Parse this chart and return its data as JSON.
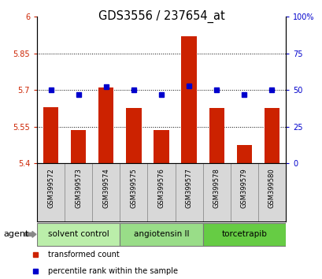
{
  "title": "GDS3556 / 237654_at",
  "samples": [
    "GSM399572",
    "GSM399573",
    "GSM399574",
    "GSM399575",
    "GSM399576",
    "GSM399577",
    "GSM399578",
    "GSM399579",
    "GSM399580"
  ],
  "bar_values": [
    5.63,
    5.535,
    5.71,
    5.625,
    5.535,
    5.92,
    5.625,
    5.475,
    5.625
  ],
  "percentile_values": [
    50,
    47,
    52,
    50,
    47,
    53,
    50,
    47,
    50
  ],
  "ylim_left": [
    5.4,
    6.0
  ],
  "ylim_right": [
    0,
    100
  ],
  "yticks_left": [
    5.4,
    5.55,
    5.7,
    5.85,
    6.0
  ],
  "yticks_right": [
    0,
    25,
    50,
    75,
    100
  ],
  "ytick_labels_left": [
    "5.4",
    "5.55",
    "5.7",
    "5.85",
    "6"
  ],
  "ytick_labels_right": [
    "0",
    "25",
    "50",
    "75",
    "100%"
  ],
  "hlines": [
    5.55,
    5.7,
    5.85
  ],
  "bar_color": "#cc2200",
  "dot_color": "#0000cc",
  "bar_base": 5.4,
  "groups": [
    {
      "label": "solvent control",
      "start": 0,
      "end": 3,
      "color": "#bbeeaa"
    },
    {
      "label": "angiotensin II",
      "start": 3,
      "end": 6,
      "color": "#99dd88"
    },
    {
      "label": "torcetrapib",
      "start": 6,
      "end": 9,
      "color": "#66cc44"
    }
  ],
  "agent_label": "agent",
  "legend_bar_label": "transformed count",
  "legend_dot_label": "percentile rank within the sample",
  "left_tick_color": "#cc2200",
  "right_tick_color": "#0000cc"
}
